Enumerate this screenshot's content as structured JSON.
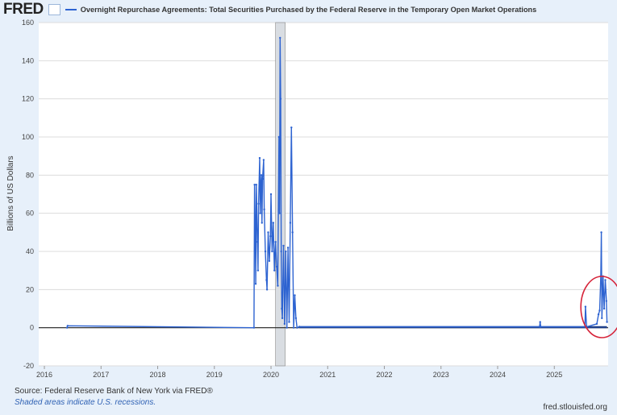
{
  "header": {
    "logo": "FRED",
    "series_title": "Overnight Repurchase Agreements: Total Securities Purchased by the Federal Reserve in the Temporary Open Market Operations"
  },
  "footer": {
    "source": "Source: Federal Reserve Bank of New York via FRED®",
    "note": "Shaded areas indicate U.S. recessions.",
    "site": "fred.stlouisfed.org"
  },
  "colors": {
    "series": "#2d63d1",
    "recession": "#d9dde2",
    "annotation": "#d6243a"
  },
  "chart_data": {
    "type": "line",
    "title": "Overnight Repurchase Agreements: Total Securities Purchased by the Federal Reserve in the Temporary Open Market Operations",
    "ylabel": "Billions of US Dollars",
    "xlabel": "",
    "ylim": [
      -20,
      160
    ],
    "xlim": [
      2015.9,
      2025.95
    ],
    "yticks": [
      -20,
      0,
      20,
      40,
      60,
      80,
      100,
      120,
      140,
      160
    ],
    "xticks": [
      2016,
      2017,
      2018,
      2019,
      2020,
      2021,
      2022,
      2023,
      2024,
      2025
    ],
    "grid": true,
    "recessions": [
      [
        2020.08,
        2020.25
      ]
    ],
    "annotation": {
      "type": "ellipse",
      "around": [
        2025.5,
        2025.95
      ]
    },
    "series": [
      {
        "name": "Overnight Repurchase Agreements",
        "x": [
          2016.4,
          2016.41,
          2019.7,
          2019.71,
          2019.72,
          2019.73,
          2019.74,
          2019.76,
          2019.77,
          2019.78,
          2019.8,
          2019.81,
          2019.82,
          2019.83,
          2019.84,
          2019.85,
          2019.87,
          2019.88,
          2019.9,
          2019.92,
          2019.93,
          2019.95,
          2019.97,
          2019.99,
          2020.0,
          2020.02,
          2020.04,
          2020.06,
          2020.08,
          2020.1,
          2020.12,
          2020.14,
          2020.15,
          2020.16,
          2020.17,
          2020.18,
          2020.19,
          2020.2,
          2020.22,
          2020.24,
          2020.26,
          2020.28,
          2020.3,
          2020.32,
          2020.34,
          2020.36,
          2020.38,
          2020.4,
          2020.42,
          2020.44,
          2020.46,
          2020.5,
          2024.74,
          2024.75,
          2024.76,
          2025.54,
          2025.55,
          2025.57,
          2025.75,
          2025.78,
          2025.8,
          2025.82,
          2025.83,
          2025.84,
          2025.86,
          2025.88,
          2025.9,
          2025.92,
          2025.93
        ],
        "y": [
          0,
          1,
          0,
          75,
          52,
          23,
          75,
          45,
          30,
          65,
          89,
          60,
          75,
          80,
          55,
          78,
          88,
          62,
          40,
          25,
          20,
          50,
          35,
          48,
          70,
          40,
          55,
          30,
          45,
          32,
          22,
          100,
          60,
          152,
          120,
          40,
          10,
          5,
          43,
          2,
          40,
          0,
          42,
          3,
          55,
          105,
          50,
          0,
          17,
          5,
          0,
          0.5,
          0.5,
          3,
          0.5,
          0.5,
          11,
          0.5,
          2,
          7,
          9,
          27,
          50,
          5,
          27,
          10,
          25,
          14,
          3
        ]
      }
    ]
  }
}
